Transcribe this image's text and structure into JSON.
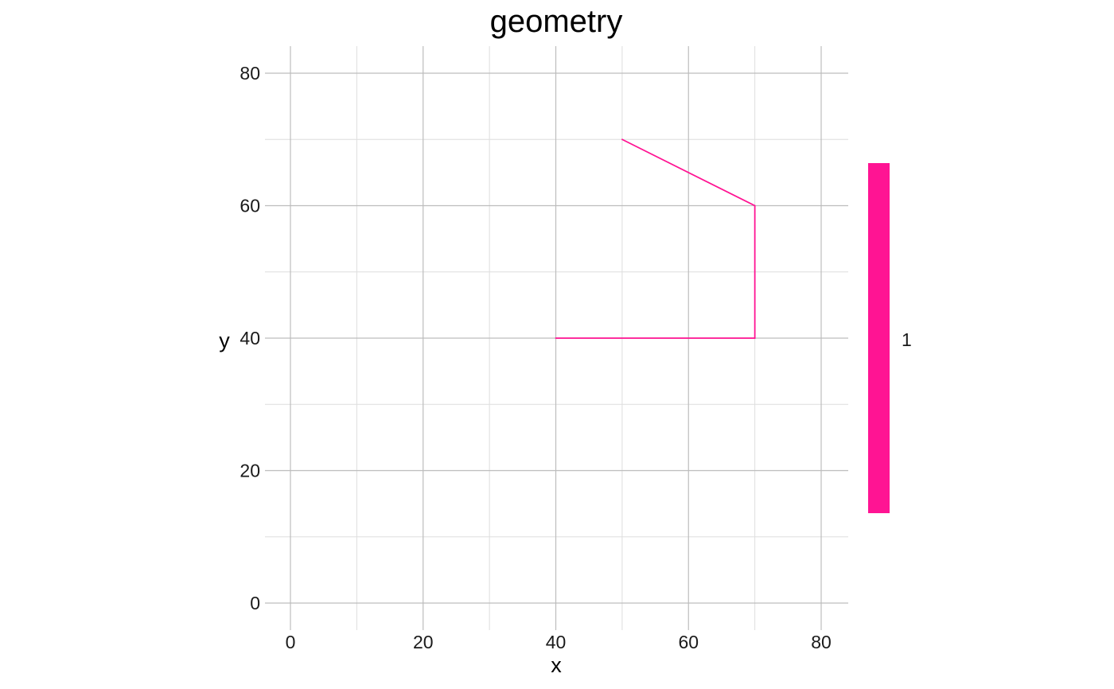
{
  "chart_data": {
    "type": "line",
    "title": "geometry",
    "xlabel": "x",
    "ylabel": "y",
    "xlim": [
      0,
      80
    ],
    "ylim": [
      0,
      80
    ],
    "x_ticks": [
      0,
      20,
      40,
      60,
      80
    ],
    "y_ticks": [
      0,
      20,
      40,
      60,
      80
    ],
    "x_tick_labels": [
      "0",
      "20",
      "40",
      "60",
      "80"
    ],
    "y_tick_labels": [
      "0",
      "20",
      "40",
      "60",
      "80"
    ],
    "grid": true,
    "legend_position": "right",
    "series": [
      {
        "name": "1",
        "color": "#ff1493",
        "points": [
          {
            "x": 40,
            "y": 40
          },
          {
            "x": 70,
            "y": 40
          },
          {
            "x": 70,
            "y": 60
          },
          {
            "x": 50,
            "y": 70
          }
        ]
      }
    ],
    "legend": {
      "label": "1",
      "color": "#ff1493"
    }
  }
}
